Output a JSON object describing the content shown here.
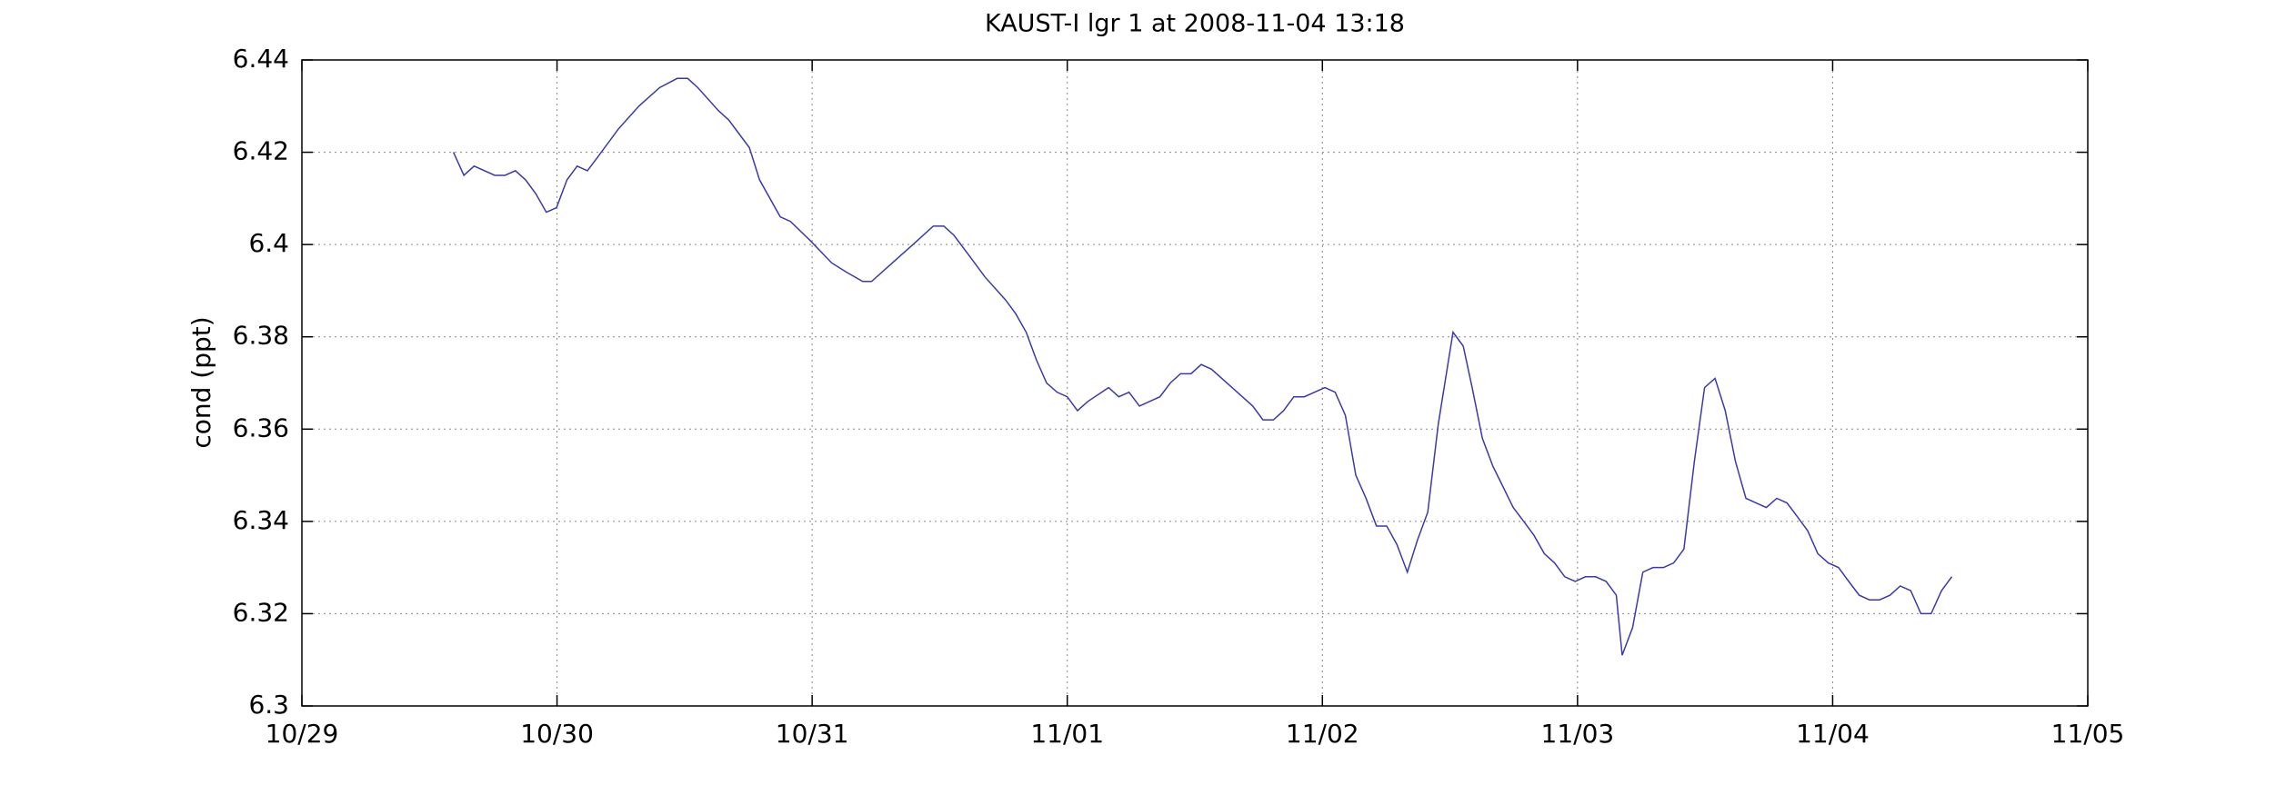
{
  "chart_data": {
    "type": "line",
    "title": "KAUST-I lgr 1 at 2008-11-04 13:18",
    "y_label": "cond (ppt)",
    "x": [
      0.594,
      0.635,
      0.675,
      0.756,
      0.796,
      0.837,
      0.877,
      0.917,
      0.958,
      0.998,
      1.039,
      1.079,
      1.119,
      1.16,
      1.24,
      1.321,
      1.402,
      1.471,
      1.512,
      1.552,
      1.633,
      1.673,
      1.754,
      1.794,
      1.875,
      1.915,
      1.99,
      2.077,
      2.135,
      2.198,
      2.233,
      2.314,
      2.395,
      2.475,
      2.516,
      2.556,
      2.637,
      2.677,
      2.758,
      2.798,
      2.839,
      2.879,
      2.919,
      2.96,
      3.0,
      3.04,
      3.081,
      3.162,
      3.202,
      3.242,
      3.283,
      3.323,
      3.363,
      3.404,
      3.444,
      3.485,
      3.525,
      3.565,
      3.646,
      3.727,
      3.767,
      3.808,
      3.848,
      3.888,
      3.929,
      4.01,
      4.05,
      4.09,
      4.131,
      4.171,
      4.212,
      4.252,
      4.292,
      4.333,
      4.373,
      4.413,
      4.454,
      4.512,
      4.552,
      4.587,
      4.627,
      4.668,
      4.748,
      4.789,
      4.829,
      4.87,
      4.91,
      4.95,
      4.991,
      5.031,
      5.071,
      5.112,
      5.152,
      5.175,
      5.216,
      5.256,
      5.296,
      5.337,
      5.377,
      5.417,
      5.458,
      5.498,
      5.539,
      5.579,
      5.619,
      5.66,
      5.7,
      5.74,
      5.781,
      5.821,
      5.862,
      5.902,
      5.942,
      5.983,
      6.023,
      6.063,
      6.104,
      6.144,
      6.184,
      6.225,
      6.265,
      6.306,
      6.346,
      6.386,
      6.427,
      6.467
    ],
    "values": [
      6.42,
      6.415,
      6.417,
      6.415,
      6.415,
      6.416,
      6.414,
      6.411,
      6.407,
      6.408,
      6.414,
      6.417,
      6.416,
      6.419,
      6.425,
      6.43,
      6.434,
      6.436,
      6.436,
      6.434,
      6.429,
      6.427,
      6.421,
      6.414,
      6.406,
      6.405,
      6.401,
      6.396,
      6.394,
      6.392,
      6.392,
      6.396,
      6.4,
      6.404,
      6.404,
      6.402,
      6.396,
      6.393,
      6.388,
      6.385,
      6.381,
      6.375,
      6.37,
      6.368,
      6.367,
      6.364,
      6.366,
      6.369,
      6.367,
      6.368,
      6.365,
      6.366,
      6.367,
      6.37,
      6.372,
      6.372,
      6.374,
      6.373,
      6.369,
      6.365,
      6.362,
      6.362,
      6.364,
      6.367,
      6.367,
      6.369,
      6.368,
      6.363,
      6.35,
      6.345,
      6.339,
      6.339,
      6.335,
      6.329,
      6.336,
      6.342,
      6.361,
      6.381,
      6.378,
      6.369,
      6.358,
      6.352,
      6.343,
      6.34,
      6.337,
      6.333,
      6.331,
      6.328,
      6.327,
      6.328,
      6.328,
      6.327,
      6.324,
      6.311,
      6.317,
      6.329,
      6.33,
      6.33,
      6.331,
      6.334,
      6.353,
      6.369,
      6.371,
      6.364,
      6.353,
      6.345,
      6.344,
      6.343,
      6.345,
      6.344,
      6.341,
      6.338,
      6.333,
      6.331,
      6.33,
      6.327,
      6.324,
      6.323,
      6.323,
      6.324,
      6.326,
      6.325,
      6.32,
      6.32,
      6.325,
      6.328
    ],
    "color": "#3a3aa8",
    "xlim": [
      0,
      7
    ],
    "xticks": [
      {
        "value": 0,
        "label": "10/29"
      },
      {
        "value": 1,
        "label": "10/30"
      },
      {
        "value": 2,
        "label": "10/31"
      },
      {
        "value": 3,
        "label": "11/01"
      },
      {
        "value": 4,
        "label": "11/02"
      },
      {
        "value": 5,
        "label": "11/03"
      },
      {
        "value": 6,
        "label": "11/04"
      },
      {
        "value": 7,
        "label": "11/05"
      }
    ],
    "ylim": [
      6.3,
      6.44
    ],
    "yticks": [
      6.3,
      6.32,
      6.34,
      6.36,
      6.38,
      6.4,
      6.42,
      6.44
    ],
    "grid": true
  }
}
